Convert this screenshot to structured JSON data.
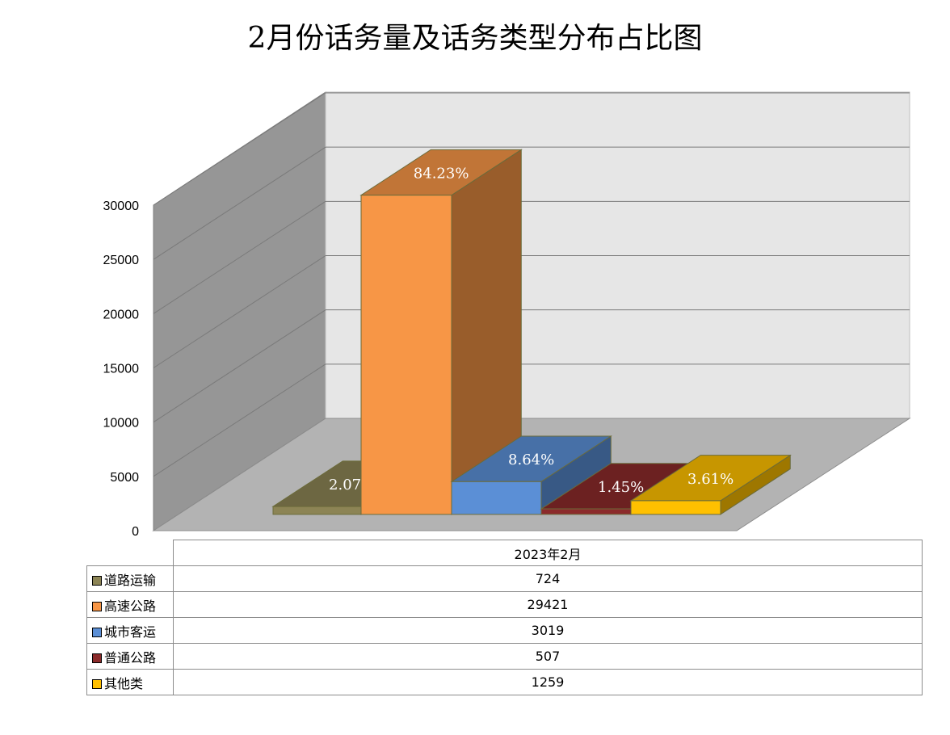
{
  "chart_data": {
    "type": "bar",
    "title": "2月份话务量及话务类型分布占比图",
    "categories": [
      "2023年2月"
    ],
    "ylim": [
      0,
      30000
    ],
    "yticks": [
      0,
      5000,
      10000,
      15000,
      20000,
      25000,
      30000
    ],
    "grid": true,
    "legend": "table",
    "series": [
      {
        "name": "道路运输",
        "values": [
          724
        ],
        "label": "2.07%",
        "color": "#8c8455"
      },
      {
        "name": "高速公路",
        "values": [
          29421
        ],
        "label": "84.23%",
        "color": "#f79646"
      },
      {
        "name": "城市客运",
        "values": [
          3019
        ],
        "label": "8.64%",
        "color": "#5b8fd6"
      },
      {
        "name": "普通公路",
        "values": [
          507
        ],
        "label": "1.45%",
        "color": "#8b2a2a"
      },
      {
        "name": "其他类",
        "values": [
          1259
        ],
        "label": "3.61%",
        "color": "#ffc000"
      }
    ]
  }
}
